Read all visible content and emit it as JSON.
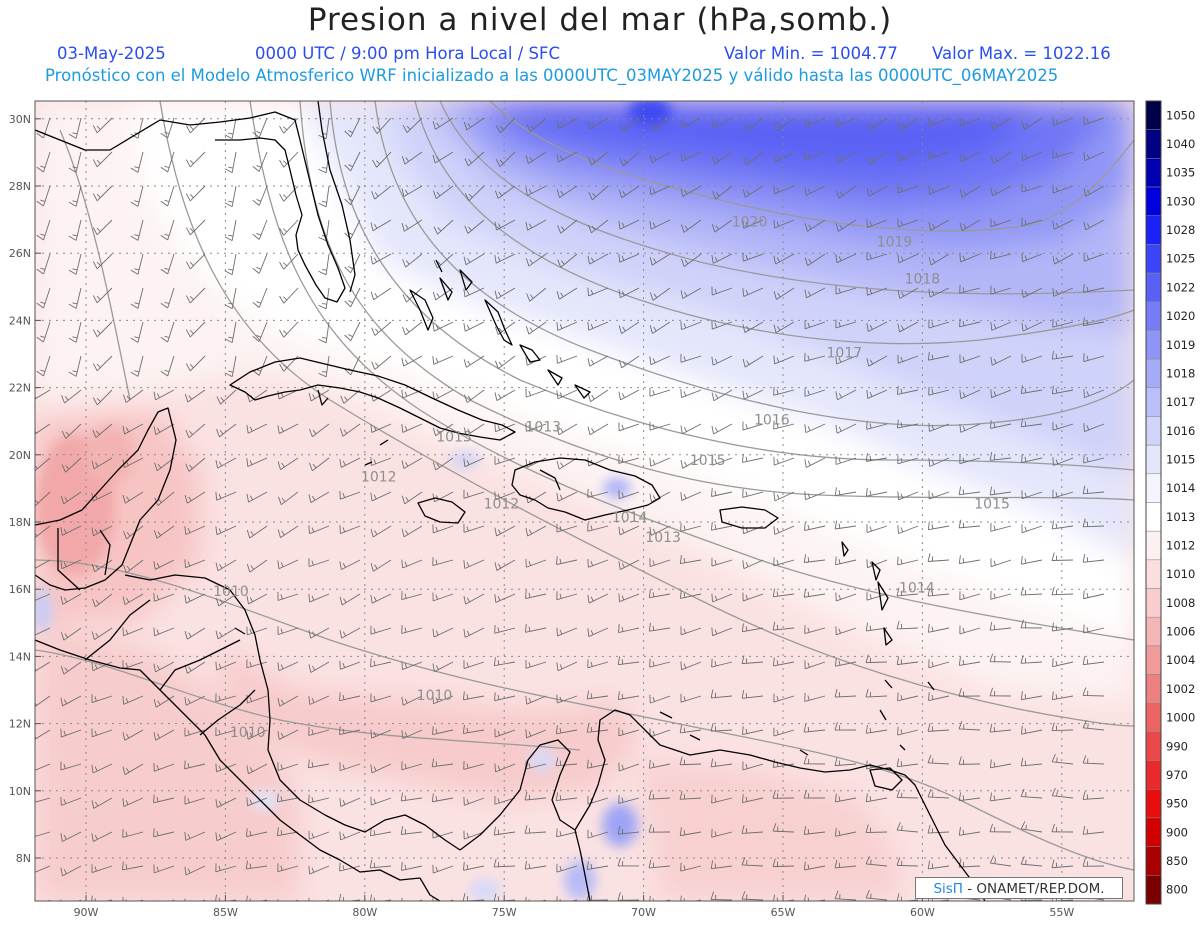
{
  "header": {
    "title": "Presion a nivel del mar (hPa,somb.)",
    "date": "03-May-2025",
    "time": "0000 UTC / 9:00 pm Hora Local / SFC",
    "min_label": "Valor Min. = 1004.77",
    "max_label": "Valor Max. = 1022.16",
    "forecast_note": "Pronóstico con el Modelo Atmosferico WRF inicializado a las 0000UTC_03MAY2025 y válido hasta las  0000UTC_06MAY2025"
  },
  "colors": {
    "title_text": "#1a1a1a",
    "subtitle_blue": "#2a4df0",
    "subtitle_cyan": "#1e9be0",
    "coast": "#000000",
    "isobar": "#9a9a9a",
    "barb": "#6e6e6e"
  },
  "map": {
    "lat_labels": [
      "30N",
      "28N",
      "26N",
      "24N",
      "22N",
      "20N",
      "18N",
      "16N",
      "14N",
      "12N",
      "10N",
      "8N"
    ],
    "lon_labels": [
      "90W",
      "85W",
      "80W",
      "75W",
      "70W",
      "65W",
      "60W",
      "55W"
    ],
    "isobar_labels": [
      {
        "text": "1020",
        "lon": -66.2,
        "lat": 26.8
      },
      {
        "text": "1019",
        "lon": -61.0,
        "lat": 26.2
      },
      {
        "text": "1018",
        "lon": -60.0,
        "lat": 25.1
      },
      {
        "text": "1017",
        "lon": -62.8,
        "lat": 22.9
      },
      {
        "text": "1016",
        "lon": -65.4,
        "lat": 20.9
      },
      {
        "text": "1015",
        "lon": -67.7,
        "lat": 19.7
      },
      {
        "text": "1015",
        "lon": -57.5,
        "lat": 18.4
      },
      {
        "text": "1014",
        "lon": -70.5,
        "lat": 18.0
      },
      {
        "text": "1014",
        "lon": -60.2,
        "lat": 15.9
      },
      {
        "text": "1013",
        "lon": -69.3,
        "lat": 17.4
      },
      {
        "text": "1013",
        "lon": -76.8,
        "lat": 20.4
      },
      {
        "text": "1013",
        "lon": -73.6,
        "lat": 20.7
      },
      {
        "text": "1012",
        "lon": -79.5,
        "lat": 19.2
      },
      {
        "text": "1012",
        "lon": -75.1,
        "lat": 18.4
      },
      {
        "text": "1010",
        "lon": -84.8,
        "lat": 15.8
      },
      {
        "text": "1010",
        "lon": -77.5,
        "lat": 12.7
      },
      {
        "text": "1010",
        "lon": -84.2,
        "lat": 11.6
      }
    ]
  },
  "legend": {
    "levels": [
      {
        "label": "1050",
        "color": "#00004a"
      },
      {
        "label": "1040",
        "color": "#000080"
      },
      {
        "label": "1035",
        "color": "#0000b0"
      },
      {
        "label": "1030",
        "color": "#0000dc"
      },
      {
        "label": "1028",
        "color": "#1a22f5"
      },
      {
        "label": "1025",
        "color": "#3b45f5"
      },
      {
        "label": "1022",
        "color": "#5860f5"
      },
      {
        "label": "1020",
        "color": "#757cf5"
      },
      {
        "label": "1019",
        "color": "#8f95f6"
      },
      {
        "label": "1018",
        "color": "#a6abf7"
      },
      {
        "label": "1017",
        "color": "#bcc0f8"
      },
      {
        "label": "1016",
        "color": "#d1d4f9"
      },
      {
        "label": "1015",
        "color": "#e4e6fb"
      },
      {
        "label": "1014",
        "color": "#f3f4fd"
      },
      {
        "label": "1013",
        "color": "#ffffff"
      },
      {
        "label": "1012",
        "color": "#fdf0f0"
      },
      {
        "label": "1010",
        "color": "#fbdede"
      },
      {
        "label": "1008",
        "color": "#f9cdcd"
      },
      {
        "label": "1006",
        "color": "#f5b5b5"
      },
      {
        "label": "1004",
        "color": "#f19a9a"
      },
      {
        "label": "1002",
        "color": "#ed8080"
      },
      {
        "label": "1000",
        "color": "#ea6464"
      },
      {
        "label": "990",
        "color": "#e84848"
      },
      {
        "label": "970",
        "color": "#e82a2a"
      },
      {
        "label": "950",
        "color": "#e60e0e"
      },
      {
        "label": "900",
        "color": "#d00000"
      },
      {
        "label": "850",
        "color": "#a80000"
      },
      {
        "label": "800",
        "color": "#7a0000"
      }
    ]
  },
  "credit": {
    "brand": "SisΠ",
    "org": " - ONAMET/REP.DOM."
  }
}
